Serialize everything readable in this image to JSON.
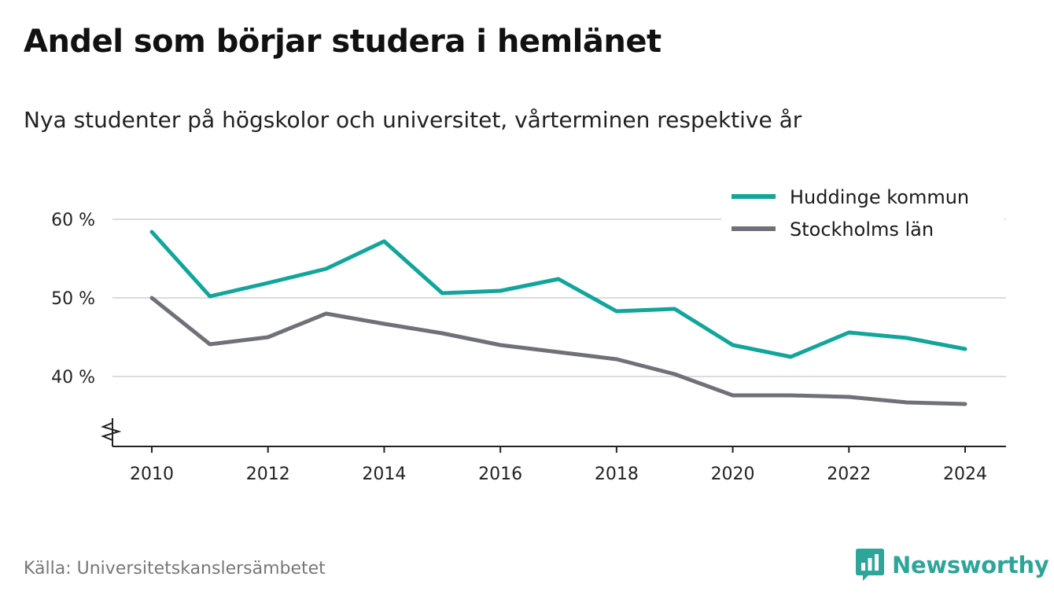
{
  "title": "Andel som börjar studera i hemlänet",
  "subtitle": "Nya studenter på högskolor och universitet, vårterminen respektive år",
  "source": "Källa: Universitetskanslersämbetet",
  "brand": {
    "name": "Newsworthy",
    "icon": "newsworthy-logo-icon",
    "color": "#2ea599"
  },
  "chart_data": {
    "type": "line",
    "title": "Andel som börjar studera i hemlänet",
    "subtitle": "Nya studenter på högskolor och universitet, vårterminen respektive år",
    "xlabel": "",
    "ylabel": "",
    "x": [
      2010,
      2011,
      2012,
      2013,
      2014,
      2015,
      2016,
      2017,
      2018,
      2019,
      2020,
      2021,
      2022,
      2023,
      2024
    ],
    "xticks": [
      2010,
      2012,
      2014,
      2016,
      2018,
      2020,
      2022,
      2024
    ],
    "xtick_labels": [
      "2010",
      "2012",
      "2014",
      "2016",
      "2018",
      "2020",
      "2022",
      "2024"
    ],
    "yticks": [
      40,
      50,
      60
    ],
    "ytick_labels": [
      "40 %",
      "50 %",
      "60 %"
    ],
    "ylim": [
      31,
      60
    ],
    "xlim": [
      2009.3,
      2024.7
    ],
    "grid": true,
    "axis_break": true,
    "legend_position": "top-right",
    "series": [
      {
        "name": "Huddinge kommun",
        "color": "#12a59b",
        "values": [
          58.4,
          50.2,
          51.9,
          53.7,
          57.2,
          50.6,
          50.9,
          52.4,
          48.3,
          48.6,
          44.0,
          42.5,
          45.6,
          44.9,
          43.5
        ]
      },
      {
        "name": "Stockholms län",
        "color": "#707078",
        "values": [
          50.0,
          44.1,
          45.0,
          48.0,
          46.7,
          45.5,
          44.0,
          43.1,
          42.2,
          40.3,
          37.6,
          37.6,
          37.4,
          36.7,
          36.5
        ]
      }
    ]
  }
}
